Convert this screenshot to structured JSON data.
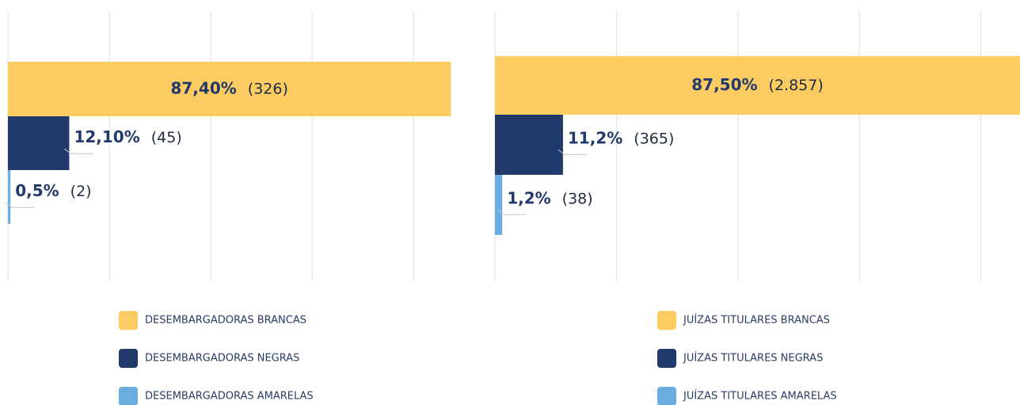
{
  "chart_data": [
    {
      "type": "bar",
      "categories": [
        "DESEMBARGADORAS BRANCAS",
        "DESEMBARGADORAS NEGRAS",
        "DESEMBARGADORAS AMARELAS"
      ],
      "values": [
        87.4,
        12.1,
        0.5
      ],
      "value_labels": [
        "87,40%",
        "12,10%",
        "0,5%"
      ],
      "count_labels": [
        "(326)",
        "(45)",
        "(2)"
      ],
      "colors": [
        "#fccc62",
        "#213a6b",
        "#6aaee0"
      ],
      "xlim": [
        0,
        100
      ],
      "xticks": [
        0,
        20,
        40,
        60,
        80
      ],
      "grid": true
    },
    {
      "type": "bar",
      "categories": [
        "JUÍZAS TITULARES BRANCAS",
        "JUÍZAS TITULARES NEGRAS",
        "JUÍZAS TITULARES AMARELAS"
      ],
      "values": [
        87.5,
        11.2,
        1.2
      ],
      "value_labels": [
        "87,50%",
        "11,2%",
        "1,2%"
      ],
      "count_labels": [
        "(2.857)",
        "(365)",
        "(38)"
      ],
      "colors": [
        "#fccc62",
        "#213a6b",
        "#6aaee0"
      ],
      "xlim": [
        0,
        100
      ],
      "xticks": [
        0,
        20,
        40,
        60,
        80
      ],
      "grid": true
    }
  ]
}
